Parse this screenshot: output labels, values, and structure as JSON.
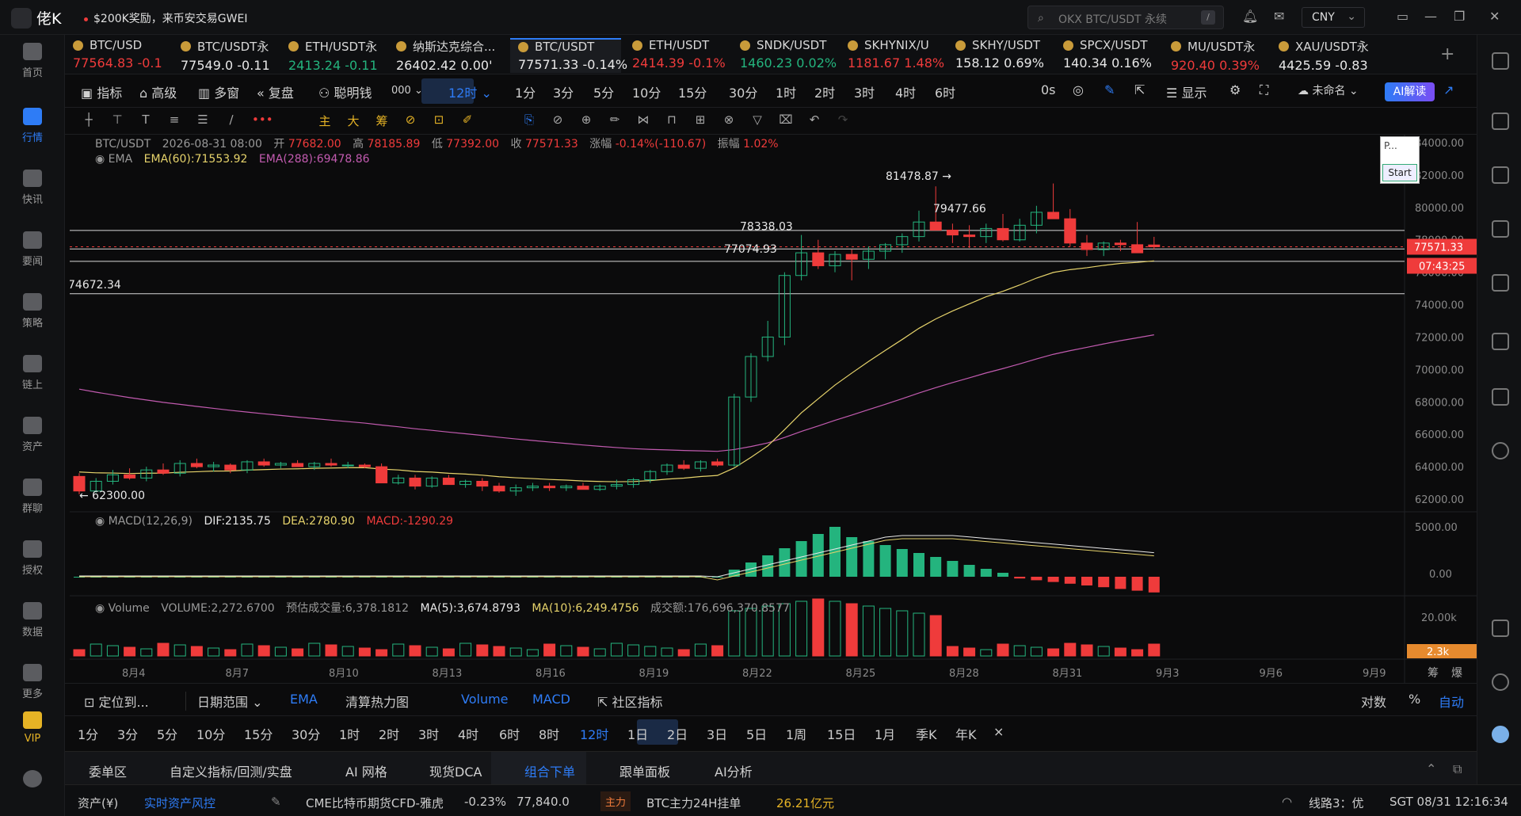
{
  "titlebar": {
    "brand": "佬K",
    "promo": "$200K奖励，来币安交易GWEI",
    "search_placeholder": "OKX BTC/USDT 永续",
    "search_key": "/",
    "currency": "CNY"
  },
  "sidebar": {
    "items": [
      {
        "label": "首页"
      },
      {
        "label": "行情"
      },
      {
        "label": "快讯"
      },
      {
        "label": "要闻"
      },
      {
        "label": "策略"
      },
      {
        "label": "链上"
      },
      {
        "label": "资产"
      },
      {
        "label": "群聊"
      },
      {
        "label": "授权"
      },
      {
        "label": "数据"
      },
      {
        "label": "更多"
      },
      {
        "label": "VIP"
      }
    ]
  },
  "tickers": [
    {
      "name": "BTC/USD",
      "price": "77564.83",
      "change": "-0.1",
      "color": "red"
    },
    {
      "name": "BTC/USDT永",
      "price": "77549.0",
      "change": "-0.11",
      "color": "white"
    },
    {
      "name": "ETH/USDT永",
      "price": "2413.24",
      "change": "-0.11",
      "color": "green"
    },
    {
      "name": "纳斯达克综合...",
      "price": "26402.42",
      "change": "0.00'",
      "color": "white"
    },
    {
      "name": "BTC/USDT",
      "price": "77571.33",
      "change": "-0.14%",
      "color": "white"
    },
    {
      "name": "ETH/USDT",
      "price": "2414.39",
      "change": "-0.1%",
      "color": "red"
    },
    {
      "name": "SNDK/USDT",
      "price": "1460.23",
      "change": "0.02%",
      "color": "green"
    },
    {
      "name": "SKHYNIX/U",
      "price": "1181.67",
      "change": "1.48%",
      "color": "red"
    },
    {
      "name": "SKHY/USDT",
      "price": "158.12",
      "change": "0.69%",
      "color": "white"
    },
    {
      "name": "SPCX/USDT",
      "price": "140.34",
      "change": "0.16%",
      "color": "white"
    },
    {
      "name": "MU/USDT永",
      "price": "920.40",
      "change": "0.39%",
      "color": "red"
    },
    {
      "name": "XAU/USDT永",
      "price": "4425.59",
      "change": "-0.83",
      "color": "white"
    }
  ],
  "toolbar": {
    "items": [
      "指标",
      "高级",
      "多窗",
      "复盘",
      "聪明钱",
      "000"
    ],
    "timeframes": [
      "12时",
      "1分",
      "3分",
      "5分",
      "10分",
      "15分",
      "30分",
      "1时",
      "2时",
      "3时",
      "4时",
      "6时"
    ],
    "countdown": "0s",
    "display": "显示",
    "layout": "未命名",
    "ai": "AI解读"
  },
  "legend": {
    "symbol": "BTC/USDT",
    "date": "2026-08-31 08:00",
    "open_label": "开",
    "open": "77682.00",
    "high_label": "高",
    "high": "78185.89",
    "low_label": "低",
    "low": "77392.00",
    "close_label": "收",
    "close": "77571.33",
    "chg_label": "涨幅",
    "chg": "-0.14%(-110.67)",
    "amp_label": "振幅",
    "amp": "1.02%",
    "ema_title": "EMA",
    "ema60": "EMA(60):71553.92",
    "ema288": "EMA(288):69478.86",
    "macd_title": "MACD(12,26,9)",
    "dif": "DIF:2135.75",
    "dea": "DEA:2780.90",
    "macd": "MACD:-1290.29",
    "vol_title": "Volume",
    "vol": "VOLUME:2,272.6700",
    "vol_est": "预估成交量:6,378.1812",
    "ma5": "MA(5):3,674.8793",
    "ma10": "MA(10):6,249.4756",
    "amount": "成交额:176,696,370.8577"
  },
  "popup": {
    "title": "P...",
    "button": "Start"
  },
  "chart_data": {
    "type": "candlestick",
    "symbol": "BTC/USDT",
    "interval": "12时",
    "x_ticks": [
      "8月4",
      "8月7",
      "8月10",
      "8月13",
      "8月16",
      "8月19",
      "8月22",
      "8月25",
      "8月28",
      "8月31",
      "9月3",
      "9月6",
      "9月9"
    ],
    "price_axis": {
      "min": 62000,
      "max": 84000,
      "ticks": [
        "84000.00",
        "82000.00",
        "80000.00",
        "78000.00",
        "76000.00",
        "74000.00",
        "72000.00",
        "70000.00",
        "68000.00",
        "66000.00",
        "64000.00",
        "62000.00"
      ]
    },
    "current_price": "77571.33",
    "countdown": "07:43:25",
    "annotations": [
      "81478.87",
      "79477.66",
      "78338.03",
      "77074.93",
      "74672.34",
      "62300.00"
    ],
    "ohlc": [
      [
        63400,
        63600,
        62300,
        62500
      ],
      [
        62500,
        63300,
        62400,
        63100
      ],
      [
        63100,
        63800,
        62900,
        63500
      ],
      [
        63500,
        63900,
        63200,
        63300
      ],
      [
        63300,
        64000,
        63100,
        63800
      ],
      [
        63800,
        64200,
        63500,
        63600
      ],
      [
        63600,
        64400,
        63400,
        64200
      ],
      [
        64200,
        64500,
        63900,
        64000
      ],
      [
        64000,
        64300,
        63700,
        64100
      ],
      [
        64100,
        64200,
        63600,
        63800
      ],
      [
        63800,
        64400,
        63600,
        64300
      ],
      [
        64300,
        64500,
        64000,
        64100
      ],
      [
        64100,
        64300,
        63900,
        64200
      ],
      [
        64200,
        64400,
        64000,
        64000
      ],
      [
        64000,
        64300,
        63800,
        64200
      ],
      [
        64200,
        64500,
        64000,
        64100
      ],
      [
        64100,
        64300,
        63900,
        64100
      ],
      [
        64100,
        64200,
        63900,
        64000
      ],
      [
        64000,
        64200,
        63000,
        63000
      ],
      [
        63000,
        63500,
        62900,
        63300
      ],
      [
        63300,
        63500,
        62600,
        62800
      ],
      [
        62800,
        63400,
        62700,
        63300
      ],
      [
        63300,
        63500,
        62900,
        62900
      ],
      [
        62900,
        63200,
        62700,
        63100
      ],
      [
        63100,
        63300,
        62500,
        62800
      ],
      [
        62800,
        63000,
        62400,
        62500
      ],
      [
        62500,
        62900,
        62200,
        62700
      ],
      [
        62700,
        63000,
        62500,
        62800
      ],
      [
        62800,
        63000,
        62500,
        62700
      ],
      [
        62700,
        62900,
        62500,
        62800
      ],
      [
        62800,
        63000,
        62600,
        62600
      ],
      [
        62600,
        62900,
        62500,
        62800
      ],
      [
        62800,
        63200,
        62600,
        62900
      ],
      [
        62900,
        63300,
        62700,
        63200
      ],
      [
        63200,
        63800,
        63000,
        63700
      ],
      [
        63700,
        64200,
        63500,
        64100
      ],
      [
        64100,
        64400,
        63800,
        63900
      ],
      [
        63900,
        64400,
        63700,
        64300
      ],
      [
        64300,
        64500,
        64000,
        64100
      ],
      [
        64100,
        68500,
        64000,
        68300
      ],
      [
        68300,
        71000,
        68000,
        70800
      ],
      [
        70800,
        73000,
        70500,
        72000
      ],
      [
        72000,
        76000,
        71500,
        75800
      ],
      [
        75800,
        78300,
        75500,
        77200
      ],
      [
        77200,
        78000,
        76200,
        76400
      ],
      [
        76400,
        77300,
        76000,
        77100
      ],
      [
        77100,
        77400,
        75500,
        76800
      ],
      [
        76800,
        77600,
        76200,
        77300
      ],
      [
        77300,
        77800,
        76800,
        77700
      ],
      [
        77700,
        78400,
        77200,
        78200
      ],
      [
        78200,
        79800,
        77900,
        79100
      ],
      [
        79100,
        81300,
        78700,
        78600
      ],
      [
        78600,
        79000,
        77800,
        78300
      ],
      [
        78300,
        78900,
        77500,
        78200
      ],
      [
        78200,
        79000,
        77800,
        78700
      ],
      [
        78700,
        79600,
        77900,
        78000
      ],
      [
        78000,
        79300,
        77900,
        78900
      ],
      [
        78900,
        80100,
        78400,
        79700
      ],
      [
        79700,
        81478,
        79300,
        79300
      ],
      [
        79300,
        79900,
        77600,
        77800
      ],
      [
        77800,
        78300,
        77000,
        77400
      ],
      [
        77400,
        77900,
        77000,
        77800
      ],
      [
        77800,
        78000,
        77300,
        77700
      ],
      [
        77700,
        79100,
        77200,
        77200
      ],
      [
        77682,
        78185,
        77392,
        77571
      ]
    ],
    "ema60_label": "EMA(60)",
    "ema288_label": "EMA(288)",
    "macd_axis": {
      "ticks": [
        "5000.00",
        "0.00"
      ]
    },
    "volume_axis": {
      "ticks": [
        "20.00k"
      ],
      "current": "2.3k"
    },
    "axis_extra": [
      "筹",
      "爆"
    ]
  },
  "range_bar": {
    "locate": "定位到...",
    "date_range": "日期范围",
    "ema": "EMA",
    "heatmap": "清算热力图",
    "volume": "Volume",
    "macd": "MACD",
    "community": "社区指标",
    "log": "对数",
    "percent": "%",
    "auto": "自动"
  },
  "tf_bar": [
    "1分",
    "3分",
    "5分",
    "10分",
    "15分",
    "30分",
    "1时",
    "2时",
    "3时",
    "4时",
    "6时",
    "8时",
    "12时",
    "1日",
    "2日",
    "3日",
    "5日",
    "1周",
    "15日",
    "1月",
    "季K",
    "年K",
    "×"
  ],
  "panel_tabs": [
    "委单区",
    "自定义指标/回测/实盘",
    "AI 网格",
    "现货DCA",
    "组合下单",
    "跟单面板",
    "AI分析"
  ],
  "statusbar": {
    "assets": "资产(¥)",
    "risk": "实时资产风控",
    "cme": "CME比特币期货CFD-雅虎",
    "cme_change": "-0.23%",
    "cme_price": "77,840.0",
    "main": "主力",
    "flow": "BTC主力24H挂单",
    "flow_value": "26.21亿元",
    "line": "线路3：优",
    "time": "SGT 08/31 12:16:34"
  }
}
